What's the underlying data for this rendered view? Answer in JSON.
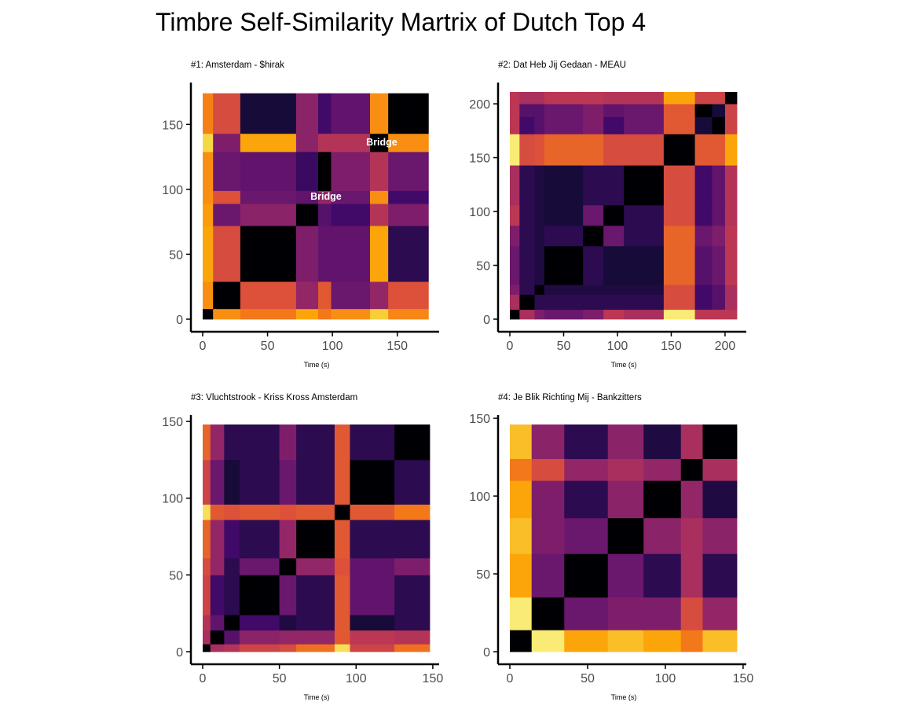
{
  "title": "Timbre Self-Similarity Martrix of Dutch Top 4",
  "chart_data": [
    {
      "type": "heatmap",
      "title": "#1: Amsterdam - $hirak",
      "xlabel": "Time (s)",
      "ylabel": "",
      "xlim": [
        0,
        175
      ],
      "ylim": [
        0,
        175
      ],
      "xticks": [
        0,
        50,
        100,
        150
      ],
      "yticks": [
        0,
        50,
        100,
        150
      ],
      "colormap": "inferno",
      "boundaries": [
        0,
        8,
        29,
        72,
        89,
        99,
        129,
        143,
        174
      ],
      "values": [
        [
          0.0,
          0.75,
          0.7,
          0.8,
          0.7,
          0.75,
          0.88,
          0.73
        ],
        [
          0.75,
          0.0,
          0.6,
          0.4,
          0.62,
          0.3,
          0.4,
          0.6
        ],
        [
          0.8,
          0.58,
          0.0,
          0.35,
          0.28,
          0.28,
          0.8,
          0.15
        ],
        [
          0.78,
          0.3,
          0.38,
          0.0,
          0.25,
          0.2,
          0.48,
          0.35
        ],
        [
          0.75,
          0.6,
          0.3,
          0.28,
          0.4,
          0.3,
          0.75,
          0.2
        ],
        [
          0.75,
          0.3,
          0.28,
          0.18,
          0.0,
          0.35,
          0.48,
          0.3
        ],
        [
          0.9,
          0.35,
          0.8,
          0.38,
          0.48,
          0.48,
          0.0,
          0.75
        ],
        [
          0.72,
          0.58,
          0.1,
          0.38,
          0.2,
          0.28,
          0.75,
          0.0
        ]
      ],
      "annotations": [
        {
          "text": "Bridge",
          "x": 95,
          "y": 95
        },
        {
          "text": "Bridge",
          "x": 138,
          "y": 137
        }
      ]
    },
    {
      "type": "heatmap",
      "title": "#2: Dat Heb Jij Gedaan - MEAU",
      "xlabel": "Time (s)",
      "ylabel": "",
      "xlim": [
        0,
        211
      ],
      "ylim": [
        0,
        211
      ],
      "xticks": [
        0,
        50,
        100,
        150,
        200
      ],
      "yticks": [
        0,
        50,
        100,
        150,
        200
      ],
      "colormap": "inferno",
      "boundaries": [
        0,
        9,
        23,
        32,
        68,
        87,
        106,
        143,
        172,
        188,
        200,
        211
      ],
      "values": [
        [
          0.0,
          0.45,
          0.35,
          0.3,
          0.35,
          0.5,
          0.45,
          0.95,
          0.5,
          0.5,
          0.5
        ],
        [
          0.45,
          0.0,
          0.15,
          0.15,
          0.15,
          0.15,
          0.15,
          0.58,
          0.2,
          0.25,
          0.45
        ],
        [
          0.35,
          0.15,
          0.0,
          0.12,
          0.12,
          0.12,
          0.12,
          0.58,
          0.2,
          0.25,
          0.45
        ],
        [
          0.3,
          0.15,
          0.12,
          0.0,
          0.15,
          0.1,
          0.1,
          0.65,
          0.25,
          0.3,
          0.5
        ],
        [
          0.35,
          0.15,
          0.12,
          0.15,
          0.0,
          0.3,
          0.15,
          0.65,
          0.3,
          0.35,
          0.5
        ],
        [
          0.5,
          0.15,
          0.12,
          0.1,
          0.3,
          0.0,
          0.15,
          0.58,
          0.2,
          0.28,
          0.48
        ],
        [
          0.45,
          0.15,
          0.12,
          0.1,
          0.15,
          0.15,
          0.0,
          0.58,
          0.2,
          0.28,
          0.48
        ],
        [
          0.95,
          0.58,
          0.6,
          0.65,
          0.65,
          0.58,
          0.58,
          0.0,
          0.62,
          0.62,
          0.8
        ],
        [
          0.5,
          0.2,
          0.25,
          0.3,
          0.35,
          0.2,
          0.3,
          0.62,
          0.1,
          0.0,
          0.55
        ],
        [
          0.5,
          0.25,
          0.25,
          0.3,
          0.35,
          0.28,
          0.3,
          0.62,
          0.0,
          0.1,
          0.55
        ],
        [
          0.5,
          0.45,
          0.45,
          0.5,
          0.5,
          0.48,
          0.48,
          0.8,
          0.55,
          0.55,
          0.0
        ]
      ]
    },
    {
      "type": "heatmap",
      "title": "#3: Vluchtstrook - Kriss Kross Amsterdam",
      "xlabel": "Time (s)",
      "ylabel": "",
      "xlim": [
        0,
        148
      ],
      "ylim": [
        0,
        148
      ],
      "xticks": [
        0,
        50,
        100,
        150
      ],
      "yticks": [
        0,
        50,
        100,
        150
      ],
      "colormap": "inferno",
      "boundaries": [
        0,
        5,
        14,
        24,
        50,
        61,
        86,
        96,
        125,
        148
      ],
      "values": [
        [
          0.0,
          0.45,
          0.48,
          0.55,
          0.58,
          0.68,
          0.92,
          0.55,
          0.68
        ],
        [
          0.45,
          0.0,
          0.25,
          0.38,
          0.4,
          0.4,
          0.62,
          0.5,
          0.48
        ],
        [
          0.48,
          0.28,
          0.0,
          0.2,
          0.12,
          0.15,
          0.62,
          0.1,
          0.15
        ],
        [
          0.55,
          0.2,
          0.15,
          0.0,
          0.3,
          0.15,
          0.62,
          0.28,
          0.15
        ],
        [
          0.58,
          0.4,
          0.15,
          0.3,
          0.0,
          0.4,
          0.6,
          0.28,
          0.35
        ],
        [
          0.65,
          0.4,
          0.2,
          0.15,
          0.4,
          0.0,
          0.62,
          0.15,
          0.15
        ],
        [
          0.92,
          0.62,
          0.6,
          0.62,
          0.6,
          0.62,
          0.0,
          0.62,
          0.7
        ],
        [
          0.55,
          0.3,
          0.1,
          0.15,
          0.3,
          0.15,
          0.62,
          0.0,
          0.15
        ],
        [
          0.65,
          0.4,
          0.15,
          0.15,
          0.35,
          0.15,
          0.62,
          0.15,
          0.0
        ]
      ]
    },
    {
      "type": "heatmap",
      "title": "#4: Je Blik Richting Mij - Bankzitters",
      "xlabel": "Time (s)",
      "ylabel": "",
      "xlim": [
        0,
        146
      ],
      "ylim": [
        0,
        146
      ],
      "xticks": [
        0,
        50,
        100,
        150
      ],
      "yticks": [
        0,
        50,
        100,
        150
      ],
      "colormap": "inferno",
      "boundaries": [
        0,
        14,
        35,
        63,
        86,
        110,
        124,
        146
      ],
      "values": [
        [
          0.0,
          0.95,
          0.8,
          0.85,
          0.8,
          0.7,
          0.85
        ],
        [
          0.95,
          0.0,
          0.3,
          0.35,
          0.35,
          0.58,
          0.4
        ],
        [
          0.8,
          0.3,
          0.0,
          0.3,
          0.15,
          0.45,
          0.15
        ],
        [
          0.85,
          0.35,
          0.3,
          0.0,
          0.38,
          0.45,
          0.38
        ],
        [
          0.8,
          0.35,
          0.15,
          0.38,
          0.0,
          0.4,
          0.12
        ],
        [
          0.7,
          0.58,
          0.4,
          0.45,
          0.4,
          0.0,
          0.45
        ],
        [
          0.85,
          0.38,
          0.15,
          0.38,
          0.12,
          0.45,
          0.0
        ]
      ]
    }
  ]
}
